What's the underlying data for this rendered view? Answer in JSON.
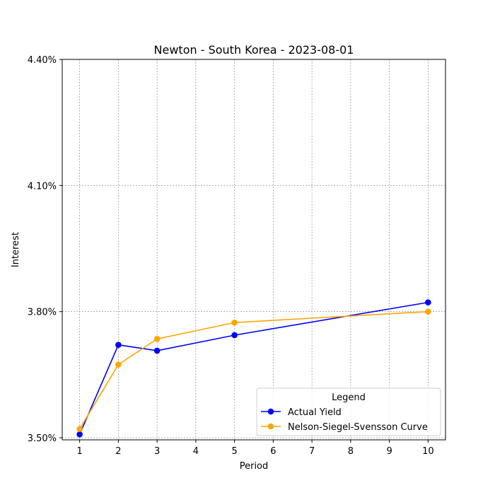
{
  "chart_data": {
    "type": "line",
    "title": "Newton - South Korea - 2023-08-01",
    "xlabel": "Period",
    "ylabel": "Interest",
    "xticks": [
      1,
      2,
      3,
      4,
      5,
      6,
      7,
      8,
      9,
      10
    ],
    "yticks": [
      3.5,
      3.8,
      4.1,
      4.4
    ],
    "ytick_labels": [
      "3.50%",
      "3.80%",
      "4.10%",
      "4.40%"
    ],
    "xlim": [
      0.55,
      10.45
    ],
    "ylim": [
      3.495,
      4.4
    ],
    "grid": true,
    "legend": {
      "title": "Legend",
      "placement": "lower-right"
    },
    "series": [
      {
        "name": "Actual Yield",
        "color": "#0000ff",
        "x": [
          1,
          2,
          3,
          5,
          10
        ],
        "y": [
          3.508,
          3.721,
          3.707,
          3.744,
          3.822
        ]
      },
      {
        "name": "Nelson-Siegel-Svensson Curve",
        "color": "#ffa500",
        "x": [
          1,
          2,
          3,
          5,
          10
        ],
        "y": [
          3.521,
          3.674,
          3.735,
          3.774,
          3.8
        ]
      }
    ]
  }
}
